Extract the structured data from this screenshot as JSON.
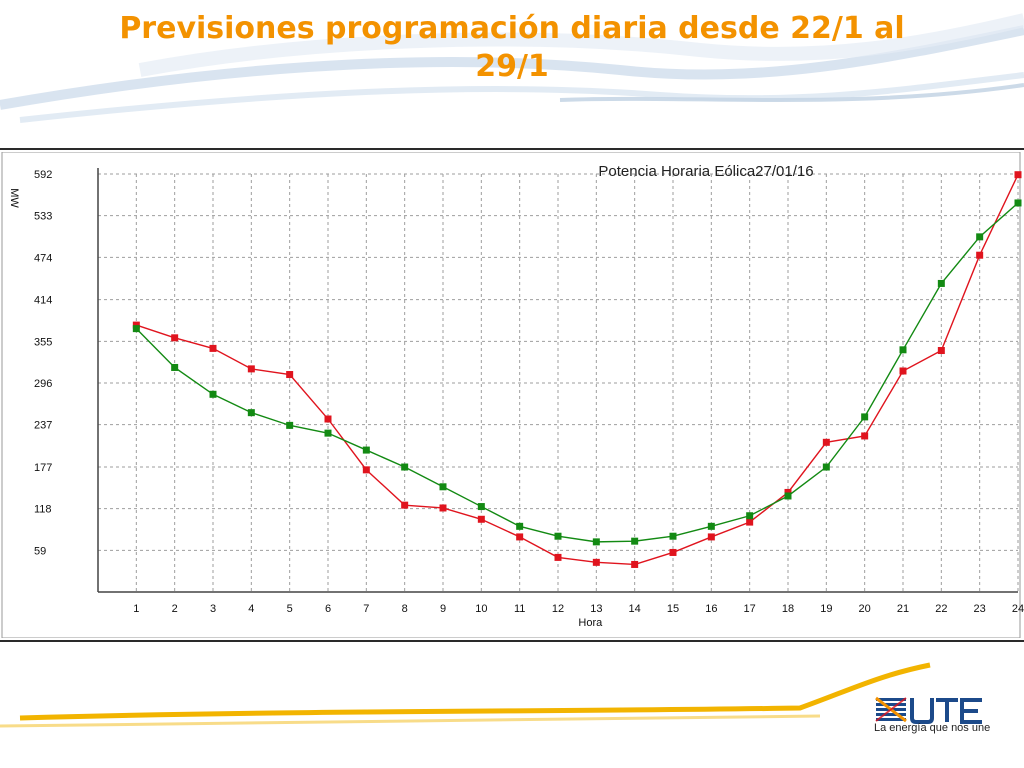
{
  "slide": {
    "title": "Previsiones programación diaria desde 22/1 al 29/1"
  },
  "brand": {
    "name": "UTE",
    "tagline": "La energía que nos une",
    "accent_color": "#f39200",
    "logo_blue": "#1c4a8a"
  },
  "chart_data": {
    "type": "line",
    "title": "Potencia Horaria Eólica27/01/16",
    "xlabel": "Hora",
    "ylabel": "MW",
    "x": [
      1,
      2,
      3,
      4,
      5,
      6,
      7,
      8,
      9,
      10,
      11,
      12,
      13,
      14,
      15,
      16,
      17,
      18,
      19,
      20,
      21,
      22,
      23,
      24
    ],
    "yticks": [
      59,
      118,
      177,
      237,
      296,
      355,
      414,
      474,
      533,
      592
    ],
    "ylim": [
      0,
      592
    ],
    "xlim": [
      0,
      24
    ],
    "grid": true,
    "series": [
      {
        "color": "#e0141e",
        "values": [
          378,
          360,
          345,
          316,
          308,
          245,
          173,
          123,
          119,
          103,
          78,
          49,
          42,
          39,
          56,
          78,
          99,
          141,
          212,
          221,
          313,
          342,
          477,
          591
        ]
      },
      {
        "color": "#138a13",
        "values": [
          373,
          318,
          280,
          254,
          236,
          225,
          201,
          177,
          149,
          121,
          93,
          79,
          71,
          72,
          79,
          93,
          108,
          136,
          177,
          248,
          343,
          437,
          503,
          551
        ]
      }
    ]
  }
}
